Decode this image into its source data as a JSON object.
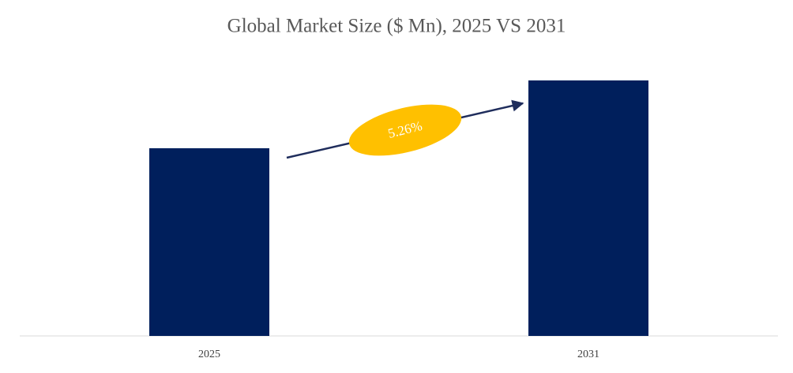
{
  "chart_data": {
    "type": "bar",
    "title": "Global Market Size ($ Mn), 2025 VS 2031",
    "categories": [
      "2025",
      "2031"
    ],
    "values": [
      238,
      324
    ],
    "color": "#001f5c",
    "ylim": [
      0,
      340
    ],
    "annotation": "5.26%",
    "annotation_color": "#ffc000"
  }
}
